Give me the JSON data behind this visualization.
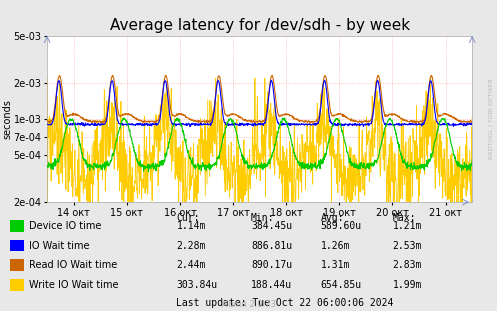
{
  "title": "Average latency for /dev/sdh - by week",
  "ylabel": "seconds",
  "background_color": "#e8e8e8",
  "plot_bg_color": "#ffffff",
  "grid_color": "#ffaaaa",
  "ymin": 0.0002,
  "ymax": 0.005,
  "yticks": [
    0.0002,
    0.0005,
    0.0007,
    0.001,
    0.002,
    0.005
  ],
  "xlabel_dates": [
    "14 окт",
    "15 окт",
    "16 окт",
    "17 окт",
    "18 окт",
    "19 окт",
    "20 окт",
    "21 окт"
  ],
  "legend_labels": [
    "Device IO time",
    "IO Wait time",
    "Read IO Wait time",
    "Write IO Wait time"
  ],
  "legend_colors": [
    "#00cc00",
    "#0000ff",
    "#cc6600",
    "#ffcc00"
  ],
  "table_headers": [
    "Cur:",
    "Min:",
    "Avg:",
    "Max:"
  ],
  "table_rows": [
    [
      "1.14m",
      "384.45u",
      "589.60u",
      "1.21m"
    ],
    [
      "2.28m",
      "886.81u",
      "1.26m",
      "2.53m"
    ],
    [
      "2.44m",
      "890.17u",
      "1.31m",
      "2.83m"
    ],
    [
      "303.84u",
      "188.44u",
      "654.85u",
      "1.99m"
    ]
  ],
  "last_update": "Last update: Tue Oct 22 06:00:06 2024",
  "watermark": "Munin 2.0.73",
  "rrdtool_label": "RRDTOOL / TOBI OETIKER",
  "title_fontsize": 11,
  "axis_fontsize": 7,
  "table_fontsize": 7
}
